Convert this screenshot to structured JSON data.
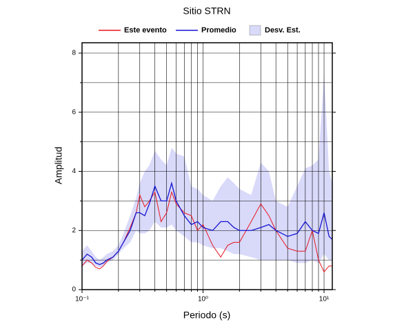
{
  "chart_data": {
    "type": "line",
    "title": "Sitio STRN",
    "xlabel": "Periodo (s)",
    "ylabel": "Amplitud",
    "xscale": "log",
    "grid": true,
    "legend": "top",
    "x": [
      0.1,
      0.11,
      0.12,
      0.13,
      0.14,
      0.15,
      0.16,
      0.18,
      0.2,
      0.22,
      0.25,
      0.28,
      0.3,
      0.33,
      0.36,
      0.4,
      0.45,
      0.5,
      0.55,
      0.6,
      0.7,
      0.8,
      0.9,
      1.0,
      1.2,
      1.4,
      1.6,
      1.8,
      2,
      2.5,
      3,
      3.5,
      4,
      5,
      6,
      7,
      8,
      9,
      10,
      11,
      11.7
    ],
    "series": [
      {
        "name": "Este evento",
        "color": "#e8141e",
        "values": [
          0.8,
          1.0,
          0.9,
          0.75,
          0.7,
          0.8,
          0.95,
          1.1,
          1.3,
          1.6,
          2.1,
          2.6,
          3.2,
          2.8,
          3.0,
          3.3,
          2.3,
          2.6,
          3.3,
          2.9,
          2.6,
          2.5,
          2.0,
          2.2,
          1.5,
          1.1,
          1.5,
          1.6,
          1.6,
          2.3,
          2.9,
          2.5,
          2.0,
          1.4,
          1.3,
          1.3,
          2.0,
          1.0,
          0.6,
          0.8,
          0.8
        ]
      },
      {
        "name": "Promedio",
        "color": "#1414d2",
        "values": [
          1.0,
          1.2,
          1.1,
          0.9,
          0.85,
          0.9,
          1.0,
          1.1,
          1.3,
          1.6,
          2.0,
          2.6,
          2.6,
          2.5,
          2.9,
          3.5,
          3.0,
          3.0,
          3.6,
          3.0,
          2.5,
          2.2,
          2.3,
          2.1,
          2.0,
          2.3,
          2.3,
          2.1,
          2.0,
          2.0,
          2.1,
          2.2,
          2.0,
          1.8,
          1.9,
          2.3,
          2.0,
          1.9,
          2.6,
          1.8,
          1.7
        ]
      }
    ],
    "band": {
      "name": "Desv. Est.",
      "color": "#d9d9fa",
      "low": [
        0.8,
        0.9,
        0.9,
        0.8,
        0.75,
        0.8,
        0.9,
        1.0,
        1.2,
        1.4,
        1.6,
        2.0,
        1.9,
        1.9,
        2.0,
        2.3,
        2.1,
        2.1,
        2.2,
        2.0,
        1.8,
        1.6,
        1.6,
        1.5,
        1.4,
        1.4,
        1.3,
        1.2,
        1.2,
        1.1,
        1.0,
        1.0,
        1.0,
        1.0,
        0.9,
        0.9,
        1.0,
        0.9,
        1.2,
        1.0,
        1.0
      ],
      "high": [
        1.3,
        1.5,
        1.3,
        1.1,
        1.0,
        1.1,
        1.2,
        1.3,
        1.5,
        1.9,
        2.5,
        3.1,
        3.6,
        4.0,
        4.2,
        4.7,
        4.4,
        4.2,
        4.8,
        4.6,
        4.5,
        3.5,
        3.4,
        3.2,
        3.0,
        3.5,
        3.8,
        3.6,
        3.4,
        3.2,
        4.3,
        4.0,
        3.0,
        2.8,
        3.5,
        4.1,
        4.2,
        4.4,
        7.3,
        4.0,
        3.6
      ]
    },
    "xlim": [
      0.1,
      11.7
    ],
    "ylim": [
      0,
      8.35
    ],
    "xticks": [
      {
        "value": 0.1,
        "label": "10⁻¹"
      },
      {
        "value": 1,
        "label": "10⁰"
      },
      {
        "value": 10,
        "label": "10¹"
      }
    ],
    "xminor": [
      0.2,
      0.3,
      0.4,
      0.5,
      0.6,
      0.7,
      0.8,
      0.9,
      2,
      3,
      4,
      5,
      6,
      7,
      8,
      9
    ],
    "yticks": [
      0,
      2,
      4,
      6,
      8
    ],
    "yminor": [
      1,
      3,
      5,
      7
    ]
  }
}
